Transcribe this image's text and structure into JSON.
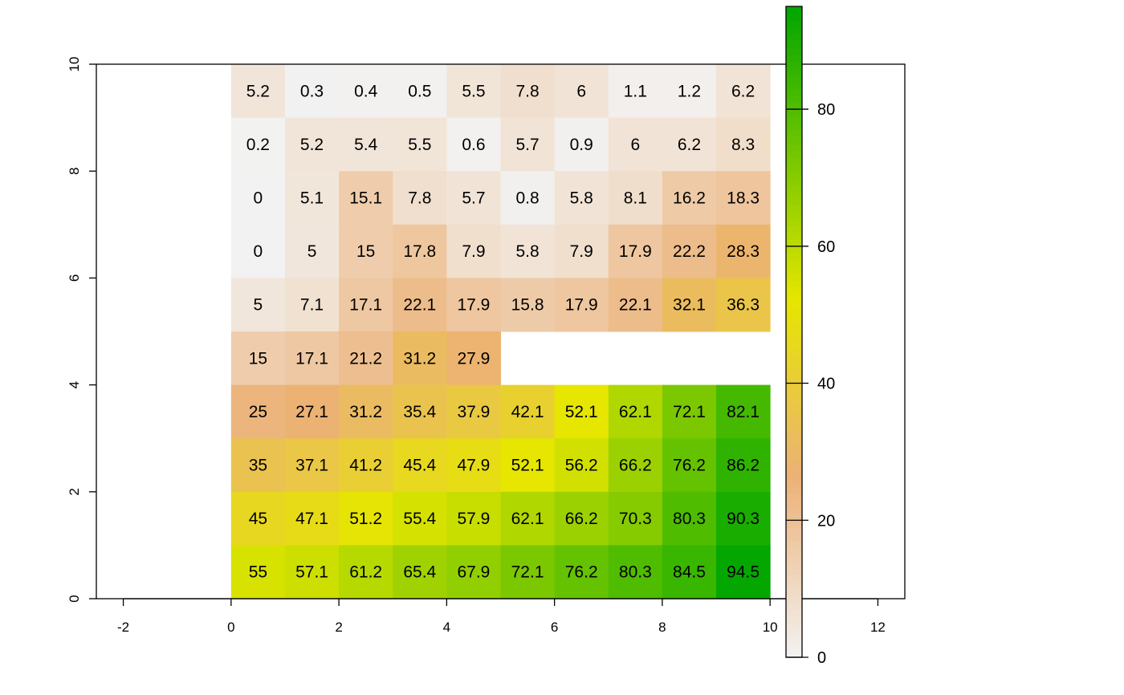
{
  "chart_data": {
    "type": "heatmap",
    "title": "",
    "xlabel": "",
    "ylabel": "",
    "xlim": [
      -2.5,
      12.5
    ],
    "ylim": [
      0,
      10
    ],
    "x_ticks": [
      "-2",
      "0",
      "2",
      "4",
      "6",
      "8",
      "10",
      "12"
    ],
    "y_ticks": [
      "0",
      "2",
      "4",
      "6",
      "8",
      "10"
    ],
    "grid": false,
    "legend_position": "right",
    "legend_ticks": [
      "0",
      "20",
      "40",
      "60",
      "80"
    ],
    "legend_range": [
      0,
      95
    ],
    "colors": {
      "low": "#f2f2f2",
      "mid_low": "#ecb176",
      "mid": "#e6e600",
      "high": "#00a600"
    },
    "rows": [
      {
        "y": [
          9,
          10
        ],
        "values": [
          5.2,
          0.3,
          0.4,
          0.5,
          5.5,
          7.8,
          6,
          1.1,
          1.2,
          6.2
        ]
      },
      {
        "y": [
          8,
          9
        ],
        "values": [
          0.2,
          5.2,
          5.4,
          5.5,
          0.6,
          5.7,
          0.9,
          6,
          6.2,
          8.3
        ]
      },
      {
        "y": [
          7,
          8
        ],
        "values": [
          0,
          5.1,
          15.1,
          7.8,
          5.7,
          0.8,
          5.8,
          8.1,
          16.2,
          18.3
        ]
      },
      {
        "y": [
          6,
          7
        ],
        "values": [
          0,
          5,
          15,
          17.8,
          7.9,
          5.8,
          7.9,
          17.9,
          22.2,
          28.3
        ]
      },
      {
        "y": [
          5,
          6
        ],
        "values": [
          5,
          7.1,
          17.1,
          22.1,
          17.9,
          15.8,
          17.9,
          22.1,
          32.1,
          36.3
        ]
      },
      {
        "y": [
          4,
          5
        ],
        "values": [
          15,
          17.1,
          21.2,
          31.2,
          27.9,
          null,
          null,
          null,
          null,
          null
        ]
      },
      {
        "y": [
          3,
          4
        ],
        "values": [
          25,
          27.1,
          31.2,
          35.4,
          37.9,
          42.1,
          52.1,
          62.1,
          72.1,
          82.1
        ]
      },
      {
        "y": [
          2,
          3
        ],
        "values": [
          35,
          37.1,
          41.2,
          45.4,
          47.9,
          52.1,
          56.2,
          66.2,
          76.2,
          86.2
        ]
      },
      {
        "y": [
          1,
          2
        ],
        "values": [
          45,
          47.1,
          51.2,
          55.4,
          57.9,
          62.1,
          66.2,
          70.3,
          80.3,
          90.3
        ]
      },
      {
        "y": [
          0,
          1
        ],
        "values": [
          55,
          57.1,
          61.2,
          65.4,
          67.9,
          72.1,
          76.2,
          80.3,
          84.5,
          94.5
        ]
      }
    ],
    "cell_x_start": 0,
    "cell_width": 1
  }
}
